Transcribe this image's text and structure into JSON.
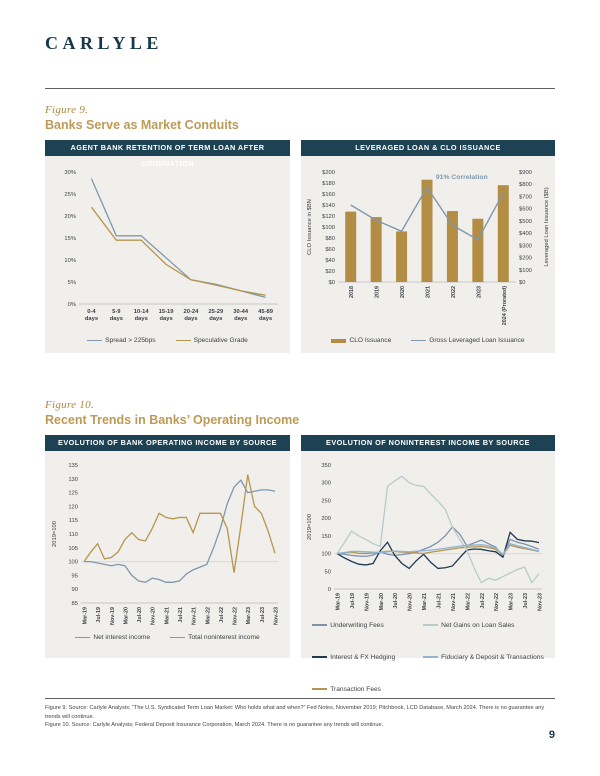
{
  "brand": {
    "logo": "CARLYLE"
  },
  "page": {
    "number": "9"
  },
  "figures": [
    {
      "label": "Figure 9.",
      "title": "Banks Serve as Market Conduits"
    },
    {
      "label": "Figure 10.",
      "title": "Recent Trends in Banks’ Operating Income"
    }
  ],
  "colors": {
    "brand_navy": "#16384c",
    "header_bar": "#1c4254",
    "gold": "#b8954c",
    "slate_blue": "#8097ad",
    "dark_navy_line": "#1f3a52",
    "pale_blue": "#b7cbcb",
    "steel_blue": "#8fb4d6",
    "panel_bg": "#f0efec"
  },
  "chart_data": [
    {
      "id": "chart1",
      "type": "line",
      "title": "AGENT BANK RETENTION OF TERM LOAN AFTER ORIGINATION",
      "categories": [
        "0-4",
        "5-9",
        "10-14",
        "15-19",
        "20-24",
        "25-29",
        "30-44",
        "45-89"
      ],
      "category_suffix": "days",
      "ylabel": "",
      "ylim": [
        0,
        30
      ],
      "ystep": 5,
      "yfmt": "pct",
      "grid": false,
      "legend_position": "bottom",
      "series": [
        {
          "name": "Spread > 225bps",
          "color": "#8097ad",
          "values": [
            28.5,
            15.5,
            15.5,
            10.5,
            5.5,
            4.5,
            3,
            1.5
          ]
        },
        {
          "name": "Speculative Grade",
          "color": "#b8954c",
          "values": [
            22,
            14.5,
            14.5,
            9,
            5.5,
            4.3,
            3,
            2
          ]
        }
      ]
    },
    {
      "id": "chart2",
      "type": "combo",
      "title": "LEVERAGED LOAN & CLO ISSUANCE",
      "categories": [
        "2018",
        "2019",
        "2020",
        "2021",
        "2022",
        "2023",
        "2024 (Prorated)"
      ],
      "left_axis": {
        "label": "CLO Issuance in $BN",
        "lim": [
          0,
          200
        ],
        "step": 20,
        "fmt": "usd"
      },
      "right_axis": {
        "label": "Leveraged Loan Issuance ($B)",
        "lim": [
          0,
          900
        ],
        "step": 100,
        "fmt": "usd"
      },
      "bars": {
        "name": "CLO Issuance",
        "color": "#b28d43",
        "values": [
          128,
          118,
          92,
          186,
          129,
          115,
          176
        ]
      },
      "line": {
        "name": "Gross Leveraged Loan Issuance",
        "color": "#8097ad",
        "values": [
          630,
          505,
          415,
          775,
          465,
          345,
          730
        ]
      },
      "annotation": {
        "text": "91% Correlation",
        "color": "#8097ad"
      },
      "legend_position": "bottom"
    },
    {
      "id": "chart3",
      "type": "line",
      "title": "EVOLUTION OF BANK OPERATING INCOME BY SOURCE",
      "x_tick_labels": [
        "Mar-19",
        "Jul-19",
        "Nov-19",
        "Mar-20",
        "Jul-20",
        "Nov-20",
        "Mar-21",
        "Jul-21",
        "Nov-21",
        "Mar-22",
        "Jul-22",
        "Nov-22",
        "Mar-23",
        "Jul-23",
        "Nov-23"
      ],
      "points_per_tick": 2,
      "ylabel": "2019=100",
      "ylim": [
        85,
        135
      ],
      "ystep": 5,
      "yfmt": "plain",
      "baseline": 100,
      "legend_position": "bottom",
      "series": [
        {
          "name": "Net interest income",
          "color": "#8097ad",
          "values": [
            100,
            100,
            99.5,
            99,
            98.5,
            99,
            98.5,
            95,
            93,
            92.5,
            94,
            93.5,
            92.5,
            92.5,
            93,
            95.5,
            97,
            98,
            99,
            105,
            112,
            121,
            127,
            129.5,
            125,
            125.5,
            126,
            126,
            125.5
          ]
        },
        {
          "name": "Total noninterest income",
          "color": "#b8954c",
          "values": [
            100,
            103.5,
            106.5,
            101,
            101.5,
            103.5,
            108,
            110.5,
            108,
            107.5,
            112,
            117.5,
            116,
            115.5,
            116,
            116,
            110.5,
            117.5,
            117.5,
            117.5,
            117.5,
            112,
            96,
            113,
            131.5,
            120,
            117.5,
            111,
            103
          ]
        }
      ]
    },
    {
      "id": "chart4",
      "type": "line",
      "title": "EVOLUTION OF NONINTEREST INCOME BY SOURCE",
      "x_tick_labels": [
        "Mar-19",
        "Jul-19",
        "Nov-19",
        "Mar-20",
        "Jul-20",
        "Nov-20",
        "Mar-21",
        "Jul-21",
        "Nov-21",
        "Mar-22",
        "Jul-22",
        "Nov-22",
        "Mar-23",
        "Jul-23",
        "Nov-23"
      ],
      "points_per_tick": 2,
      "ylabel": "2019=100",
      "ylim": [
        0,
        350
      ],
      "ystep": 50,
      "yfmt": "plain",
      "baseline": 100,
      "legend_columns": 2,
      "legend_position": "bottom",
      "series": [
        {
          "name": "Underwriting Fees",
          "color": "#7d93ad",
          "values": [
            100,
            98,
            95,
            93,
            92,
            96,
            105,
            98,
            95,
            97,
            100,
            104,
            112,
            120,
            132,
            150,
            175,
            155,
            122,
            130,
            138,
            128,
            118,
            92,
            140,
            132,
            127,
            120,
            112
          ]
        },
        {
          "name": "Interest & FX Hedging",
          "color": "#1f3a52",
          "values": [
            100,
            88,
            78,
            70,
            68,
            72,
            108,
            132,
            95,
            72,
            58,
            80,
            98,
            75,
            58,
            60,
            65,
            88,
            110,
            113,
            112,
            108,
            105,
            90,
            160,
            140,
            136,
            135,
            131
          ]
        },
        {
          "name": "Transaction Fees",
          "color": "#b8954c",
          "values": [
            100,
            102,
            104,
            101,
            100,
            102,
            104,
            107,
            106,
            104,
            103,
            102,
            100,
            104,
            107,
            110,
            113,
            116,
            118,
            119,
            120,
            117,
            112,
            96,
            124,
            118,
            114,
            110,
            106
          ]
        },
        {
          "name": "Net Gains on Loan Sales",
          "color": "#b7cbcb",
          "values": [
            100,
            130,
            163,
            150,
            140,
            128,
            120,
            290,
            305,
            318,
            300,
            292,
            290,
            268,
            248,
            225,
            175,
            140,
            110,
            60,
            18,
            30,
            25,
            35,
            45,
            55,
            62,
            18,
            43
          ]
        },
        {
          "name": "Fiduciary & Deposit & Transactions",
          "color": "#8fb4d6",
          "values": [
            100,
            103,
            106,
            106,
            105,
            104,
            103,
            105,
            107,
            106,
            105,
            107,
            108,
            110,
            112,
            115,
            118,
            121,
            123,
            124,
            125,
            122,
            115,
            98,
            128,
            122,
            117,
            112,
            107
          ]
        }
      ]
    }
  ],
  "footer": {
    "lines": [
      "Figure 9. Source: Carlyle Analysis; “The U.S. Syndicated Term Loan Market: Who holds what and when?” Fed Notes, November 2019; Pitchbook, LCD Database, March 2024.  There is no guarantee any trends will continue.",
      "Figure 10. Source: Carlyle Analysis; Federal Deposit Insurance Corporation, March 2024.  There is no guarantee any trends will continue."
    ]
  }
}
